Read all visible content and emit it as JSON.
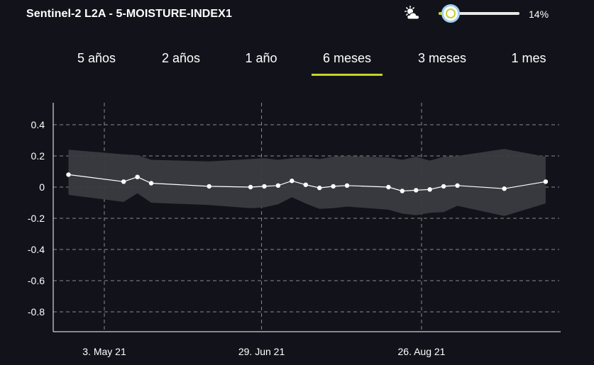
{
  "header": {
    "title": "Sentinel-2 L2A - 5-MOISTURE-INDEX1",
    "cloud_icon": "cloud-sun-icon",
    "cloud_coverage": 0.14,
    "cloud_coverage_label": "14%"
  },
  "tabs": [
    {
      "label": "5 años",
      "active": false
    },
    {
      "label": "2 años",
      "active": false
    },
    {
      "label": "1 año",
      "active": false
    },
    {
      "label": "6 meses",
      "active": true
    },
    {
      "label": "3 meses",
      "active": false
    },
    {
      "label": "1 mes",
      "active": false
    }
  ],
  "colors": {
    "background": "#12131a",
    "accent": "#c8d22a",
    "band": "#3a3b40",
    "line": "#ffffff",
    "grid": "#8a8a8a"
  },
  "chart_data": {
    "type": "line",
    "x_tick_labels": [
      "3. May 21",
      "29. Jun 21",
      "26. Aug 21"
    ],
    "y_tick_labels": [
      "0.4",
      "0.2",
      "0",
      "-0.2",
      "-0.4",
      "-0.6",
      "-0.8"
    ],
    "ylim": [
      -0.93,
      0.55
    ],
    "y_ticks": [
      0.4,
      0.2,
      0,
      -0.2,
      -0.4,
      -0.6,
      -0.8
    ],
    "x_start": "2021-04-20",
    "x_end": "2021-09-30",
    "x_ticks": [
      "2021-05-03",
      "2021-06-29",
      "2021-08-26"
    ],
    "grid": true,
    "series": [
      {
        "points": [
          [
            "2021-04-20",
            0.08
          ],
          [
            "2021-05-10",
            0.035
          ],
          [
            "2021-05-15",
            0.065
          ],
          [
            "2021-05-20",
            0.025
          ],
          [
            "2021-06-10",
            0.005
          ],
          [
            "2021-06-25",
            0.0
          ],
          [
            "2021-06-30",
            0.005
          ],
          [
            "2021-07-05",
            0.01
          ],
          [
            "2021-07-10",
            0.04
          ],
          [
            "2021-07-15",
            0.015
          ],
          [
            "2021-07-20",
            -0.005
          ],
          [
            "2021-07-25",
            0.005
          ],
          [
            "2021-07-30",
            0.01
          ],
          [
            "2021-08-14",
            0.0
          ],
          [
            "2021-08-19",
            -0.025
          ],
          [
            "2021-08-24",
            -0.02
          ],
          [
            "2021-08-29",
            -0.015
          ],
          [
            "2021-09-03",
            0.005
          ],
          [
            "2021-09-08",
            0.01
          ],
          [
            "2021-09-25",
            -0.01
          ],
          [
            "2021-10-10",
            0.035
          ]
        ],
        "band": [
          [
            "2021-04-20",
            0.24,
            -0.05
          ],
          [
            "2021-05-10",
            0.21,
            -0.095
          ],
          [
            "2021-05-15",
            0.205,
            -0.04
          ],
          [
            "2021-05-20",
            0.175,
            -0.1
          ],
          [
            "2021-06-10",
            0.165,
            -0.115
          ],
          [
            "2021-06-25",
            0.18,
            -0.135
          ],
          [
            "2021-06-30",
            0.185,
            -0.13
          ],
          [
            "2021-07-05",
            0.175,
            -0.11
          ],
          [
            "2021-07-10",
            0.185,
            -0.065
          ],
          [
            "2021-07-15",
            0.19,
            -0.105
          ],
          [
            "2021-07-20",
            0.18,
            -0.14
          ],
          [
            "2021-07-25",
            0.195,
            -0.135
          ],
          [
            "2021-07-30",
            0.2,
            -0.125
          ],
          [
            "2021-08-14",
            0.19,
            -0.145
          ],
          [
            "2021-08-19",
            0.175,
            -0.17
          ],
          [
            "2021-08-24",
            0.195,
            -0.18
          ],
          [
            "2021-08-29",
            0.17,
            -0.165
          ],
          [
            "2021-09-03",
            0.195,
            -0.16
          ],
          [
            "2021-09-08",
            0.2,
            -0.12
          ],
          [
            "2021-09-25",
            0.245,
            -0.185
          ],
          [
            "2021-10-10",
            0.195,
            -0.105
          ]
        ]
      }
    ]
  }
}
